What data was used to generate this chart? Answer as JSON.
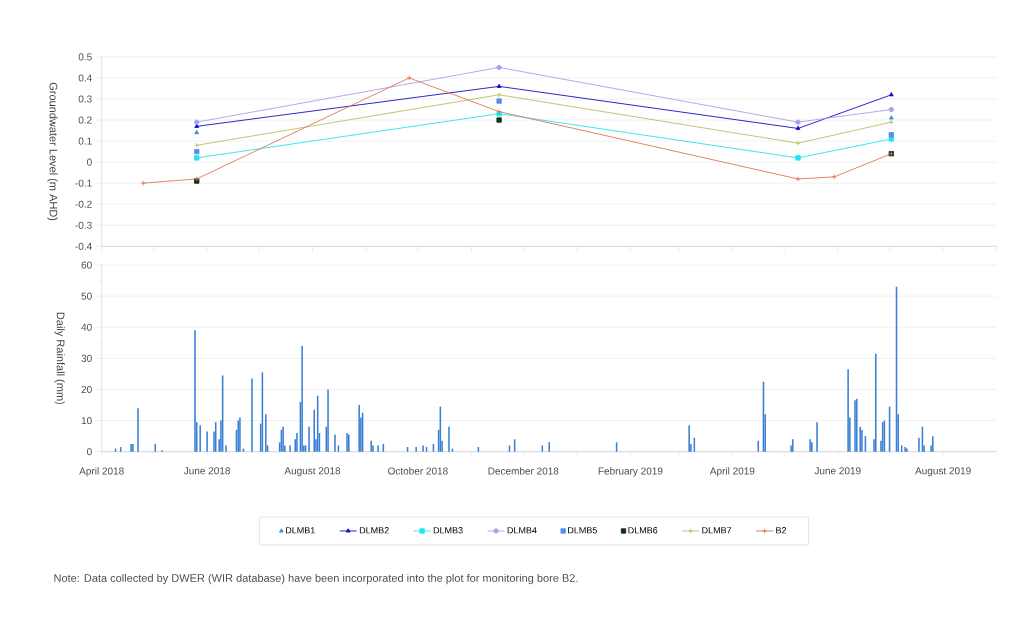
{
  "chart_data": [
    {
      "type": "line",
      "ylabel": "Groundwater Level (m AHD)",
      "x": [
        "2018-05-26",
        "2018-11-17",
        "2019-05-09",
        "2019-07-02"
      ],
      "series": [
        {
          "name": "DLMB1",
          "type": "scatter",
          "color": "#3c8ee0",
          "marker": "triangle",
          "values": [
            0.14,
            null,
            null,
            0.21
          ]
        },
        {
          "name": "DLMB2",
          "type": "line",
          "color": "#1010c8",
          "marker": "triangle",
          "values": [
            0.17,
            0.36,
            0.16,
            0.32
          ]
        },
        {
          "name": "DLMB3",
          "type": "line",
          "color": "#22e6f0",
          "marker": "square",
          "values": [
            0.02,
            0.23,
            0.02,
            0.11
          ]
        },
        {
          "name": "DLMB4",
          "type": "line",
          "color": "#a8a0f0",
          "marker": "circle",
          "values": [
            0.19,
            0.45,
            0.19,
            0.25
          ]
        },
        {
          "name": "DLMB5",
          "type": "scatter",
          "color": "#5a8ee8",
          "marker": "square",
          "values": [
            0.05,
            0.29,
            null,
            0.13
          ]
        },
        {
          "name": "DLMB6",
          "type": "scatter",
          "color": "#0f2f1f",
          "marker": "square",
          "values": [
            -0.09,
            0.2,
            null,
            0.04
          ]
        },
        {
          "name": "DLMB7",
          "type": "line",
          "color": "#b8c060",
          "marker": "cross",
          "values": [
            0.08,
            0.32,
            0.09,
            0.19
          ]
        },
        {
          "name": "B2",
          "type": "line",
          "color": "#e07850",
          "marker": "cross",
          "x": [
            "2018-04-25",
            "2018-05-26",
            "2018-09-26",
            "2018-11-17",
            "2019-05-09",
            "2019-05-30",
            "2019-07-02"
          ],
          "values": [
            -0.1,
            -0.08,
            0.4,
            0.24,
            -0.08,
            -0.07,
            0.04
          ]
        }
      ],
      "xlim": [
        "2018-04-01",
        "2019-09-01"
      ],
      "xticks": [
        {
          "value": "2018-04-01",
          "label": null
        },
        {
          "value": "2018-05-01",
          "label": null
        },
        {
          "value": "2018-06-01",
          "label": null
        },
        {
          "value": "2018-07-01",
          "label": null
        },
        {
          "value": "2018-08-01",
          "label": null
        },
        {
          "value": "2018-09-01",
          "label": null
        },
        {
          "value": "2018-10-01",
          "label": null
        },
        {
          "value": "2018-11-01",
          "label": null
        },
        {
          "value": "2018-12-01",
          "label": null
        },
        {
          "value": "2019-01-01",
          "label": null
        },
        {
          "value": "2019-02-01",
          "label": null
        },
        {
          "value": "2019-03-01",
          "label": null
        },
        {
          "value": "2019-04-01",
          "label": null
        },
        {
          "value": "2019-05-01",
          "label": null
        },
        {
          "value": "2019-06-01",
          "label": null
        },
        {
          "value": "2019-07-01",
          "label": null
        },
        {
          "value": "2019-08-01",
          "label": null
        },
        {
          "value": "2019-09-01",
          "label": null
        }
      ],
      "ylim": [
        -0.4,
        0.5
      ],
      "yticks": [
        -0.4,
        -0.3,
        -0.2,
        -0.1,
        0,
        0.1,
        0.2,
        0.3,
        0.4,
        0.5
      ],
      "tick_labels": "y",
      "grid": "y",
      "legend": "bottom",
      "annotations": [
        "Note: Data collected by DWER (WIR database) have been incorporated into the plot for monitoring bore B2."
      ]
    },
    {
      "type": "bar",
      "ylabel": "Daily Rainfall (mm)",
      "color": "#3a7fd5",
      "x": [
        "2018-04-09",
        "2018-04-12",
        "2018-04-18",
        "2018-04-19",
        "2018-04-22",
        "2018-05-02",
        "2018-05-06",
        "2018-05-25",
        "2018-05-26",
        "2018-05-28",
        "2018-06-01",
        "2018-06-05",
        "2018-06-06",
        "2018-06-08",
        "2018-06-09",
        "2018-06-10",
        "2018-06-12",
        "2018-06-18",
        "2018-06-19",
        "2018-06-20",
        "2018-06-22",
        "2018-06-27",
        "2018-07-02",
        "2018-07-03",
        "2018-07-05",
        "2018-07-06",
        "2018-07-13",
        "2018-07-14",
        "2018-07-15",
        "2018-07-16",
        "2018-07-19",
        "2018-07-22",
        "2018-07-23",
        "2018-07-25",
        "2018-07-26",
        "2018-07-27",
        "2018-07-28",
        "2018-07-30",
        "2018-08-02",
        "2018-08-03",
        "2018-08-04",
        "2018-08-05",
        "2018-08-09",
        "2018-08-10",
        "2018-08-14",
        "2018-08-16",
        "2018-08-21",
        "2018-08-22",
        "2018-08-28",
        "2018-08-29",
        "2018-08-30",
        "2018-09-04",
        "2018-09-05",
        "2018-09-08",
        "2018-09-11",
        "2018-09-25",
        "2018-09-30",
        "2018-10-04",
        "2018-10-06",
        "2018-10-10",
        "2018-10-13",
        "2018-10-14",
        "2018-10-15",
        "2018-10-19",
        "2018-10-21",
        "2018-11-05",
        "2018-11-23",
        "2018-11-26",
        "2018-12-12",
        "2018-12-16",
        "2019-01-24",
        "2019-03-07",
        "2019-03-08",
        "2019-03-10",
        "2019-04-16",
        "2019-04-19",
        "2019-04-20",
        "2019-05-05",
        "2019-05-06",
        "2019-05-16",
        "2019-05-17",
        "2019-05-20",
        "2019-06-07",
        "2019-06-08",
        "2019-06-11",
        "2019-06-12",
        "2019-06-14",
        "2019-06-15",
        "2019-06-17",
        "2019-06-22",
        "2019-06-23",
        "2019-06-26",
        "2019-06-27",
        "2019-06-28",
        "2019-07-01",
        "2019-07-05",
        "2019-07-06",
        "2019-07-08",
        "2019-07-10",
        "2019-07-11",
        "2019-07-18",
        "2019-07-20",
        "2019-07-21",
        "2019-07-25",
        "2019-07-26"
      ],
      "values": [
        1,
        1.5,
        2.5,
        2.5,
        14,
        2.5,
        0.5,
        39,
        9.5,
        8.5,
        6.5,
        6.5,
        9.5,
        4,
        10,
        24.5,
        2,
        7,
        10,
        11,
        1,
        23.5,
        9,
        25.5,
        12,
        2,
        3,
        7,
        8,
        2,
        2,
        4,
        6,
        16,
        34,
        2,
        2,
        8,
        13.5,
        4,
        18,
        6,
        8,
        20,
        5.5,
        2,
        6,
        5.5,
        15,
        11,
        12.5,
        3.5,
        2,
        2,
        2.5,
        1.5,
        1.5,
        2,
        1.5,
        2.5,
        7,
        14.5,
        3.5,
        8,
        1,
        1.5,
        2,
        4,
        2,
        3,
        3,
        8.5,
        2.5,
        4.5,
        3.5,
        22.5,
        12,
        2,
        4,
        4,
        3,
        9.5,
        26.5,
        11,
        16.5,
        17,
        8,
        7,
        5,
        4,
        31.5,
        3.5,
        9.5,
        10,
        14.5,
        53,
        12,
        2,
        1.5,
        1,
        4.5,
        8,
        2,
        2,
        5
      ],
      "xlim": [
        "2018-04-01",
        "2019-09-01"
      ],
      "xticks": [
        {
          "value": "2018-04-01",
          "label": "April 2018"
        },
        {
          "value": "2018-05-01",
          "label": null
        },
        {
          "value": "2018-06-01",
          "label": "June 2018"
        },
        {
          "value": "2018-07-01",
          "label": null
        },
        {
          "value": "2018-08-01",
          "label": "August 2018"
        },
        {
          "value": "2018-09-01",
          "label": null
        },
        {
          "value": "2018-10-01",
          "label": "October 2018"
        },
        {
          "value": "2018-11-01",
          "label": null
        },
        {
          "value": "2018-12-01",
          "label": "December 2018"
        },
        {
          "value": "2019-01-01",
          "label": null
        },
        {
          "value": "2019-02-01",
          "label": "February 2019"
        },
        {
          "value": "2019-03-01",
          "label": null
        },
        {
          "value": "2019-04-01",
          "label": "April 2019"
        },
        {
          "value": "2019-05-01",
          "label": null
        },
        {
          "value": "2019-06-01",
          "label": "June 2019"
        },
        {
          "value": "2019-07-01",
          "label": null
        },
        {
          "value": "2019-08-01",
          "label": "August 2019"
        },
        {
          "value": "2019-09-01",
          "label": null
        }
      ],
      "ylim": [
        0,
        60
      ],
      "yticks": [
        0,
        {
          "value": 5,
          "label": null
        },
        10,
        {
          "value": 15,
          "label": null
        },
        20,
        {
          "value": 25,
          "label": null
        },
        30,
        {
          "value": 35,
          "label": null
        },
        40,
        {
          "value": 45,
          "label": null
        },
        50,
        {
          "value": 55,
          "label": null
        },
        60
      ],
      "grid": "y"
    }
  ]
}
